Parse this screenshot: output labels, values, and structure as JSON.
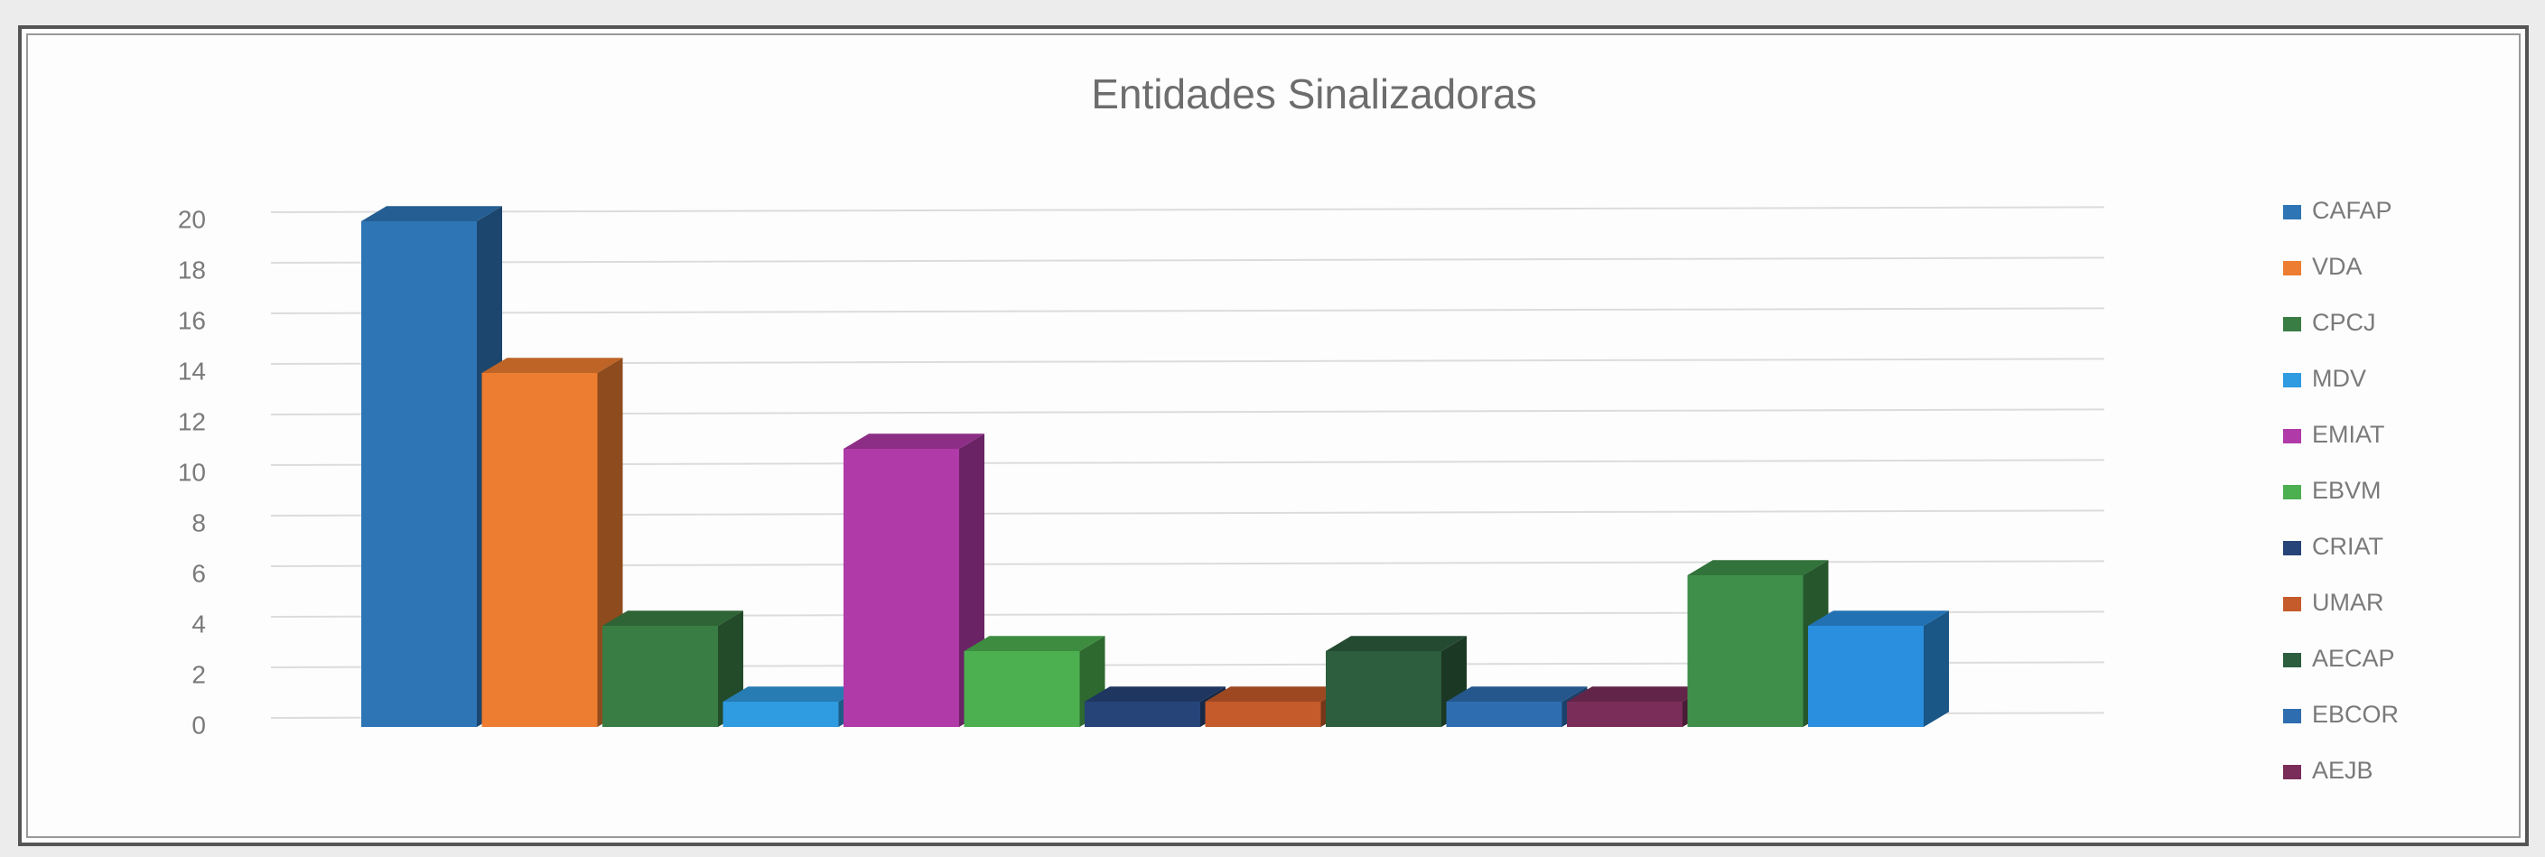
{
  "chart_data": {
    "type": "bar3d",
    "title": "Entidades Sinalizadoras",
    "categories": [
      "CAFAP",
      "VDA",
      "CPCJ",
      "MDV",
      "EMIAT",
      "EBVM",
      "CRIAT",
      "UMAR",
      "AECAP",
      "EBCOR",
      "AEJB",
      null,
      null
    ],
    "values": [
      20,
      14,
      4,
      1,
      11,
      3,
      1,
      1,
      3,
      1,
      1,
      6,
      4
    ],
    "colors": [
      "#2e75b6",
      "#ed7d31",
      "#3a7d44",
      "#2f9be0",
      "#b03aa8",
      "#4caf50",
      "#264478",
      "#c55a2a",
      "#2d5e3e",
      "#2e6db0",
      "#7b2d5a",
      "#3f8f4a",
      "#2b8fe0"
    ],
    "ylim": [
      0,
      20
    ],
    "yticks": [
      0,
      2,
      4,
      6,
      8,
      10,
      12,
      14,
      16,
      18,
      20
    ],
    "grid": true,
    "legend": "right"
  }
}
